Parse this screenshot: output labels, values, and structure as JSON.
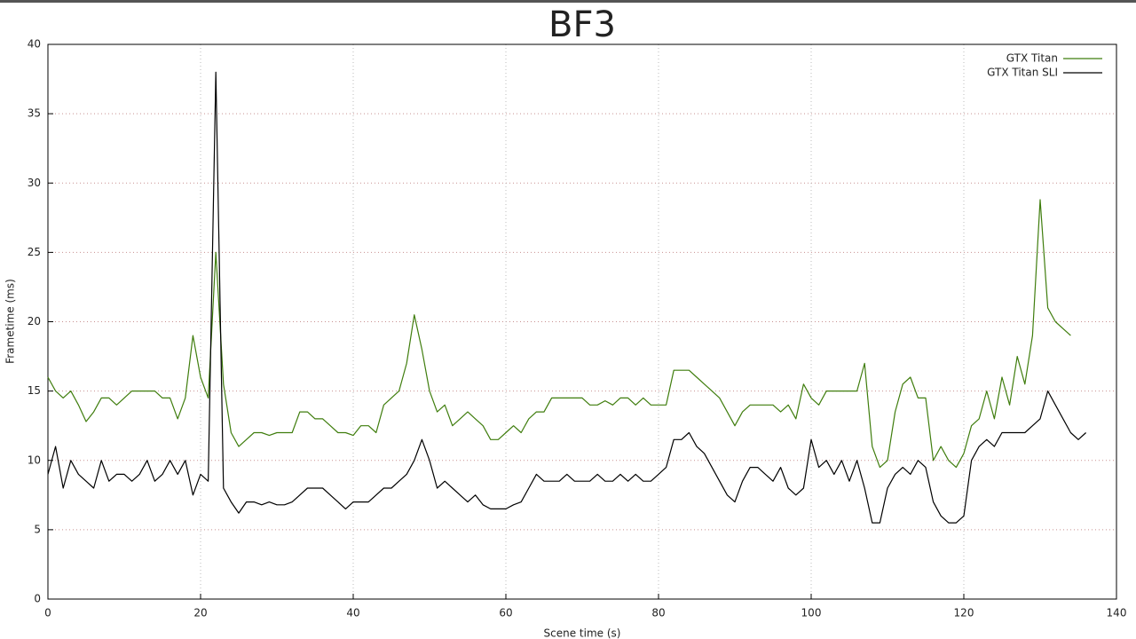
{
  "chart_data": {
    "type": "line",
    "title": "BF3",
    "x_label": "Scene time (s)",
    "y_label": "Frametime (ms)",
    "x": [
      0,
      1,
      2,
      3,
      4,
      5,
      6,
      7,
      8,
      9,
      10,
      11,
      12,
      13,
      14,
      15,
      16,
      17,
      18,
      19,
      20,
      21,
      22,
      23,
      24,
      25,
      26,
      27,
      28,
      29,
      30,
      31,
      32,
      33,
      34,
      35,
      36,
      37,
      38,
      39,
      40,
      41,
      42,
      43,
      44,
      45,
      46,
      47,
      48,
      49,
      50,
      51,
      52,
      53,
      54,
      55,
      56,
      57,
      58,
      59,
      60,
      61,
      62,
      63,
      64,
      65,
      66,
      67,
      68,
      69,
      70,
      71,
      72,
      73,
      74,
      75,
      76,
      77,
      78,
      79,
      80,
      81,
      82,
      83,
      84,
      85,
      86,
      87,
      88,
      89,
      90,
      91,
      92,
      93,
      94,
      95,
      96,
      97,
      98,
      99,
      100,
      101,
      102,
      103,
      104,
      105,
      106,
      107,
      108,
      109,
      110,
      111,
      112,
      113,
      114,
      115,
      116,
      117,
      118,
      119,
      120,
      121,
      122,
      123,
      124,
      125,
      126,
      127,
      128,
      129,
      130,
      131,
      132,
      133,
      134,
      135,
      136
    ],
    "series": [
      {
        "name": "GTX Titan",
        "color": "#3f7d0d",
        "values": [
          16,
          15,
          14.5,
          15,
          14,
          12.8,
          13.5,
          14.5,
          14.5,
          14,
          14.5,
          15,
          15,
          15,
          15,
          14.5,
          14.5,
          13,
          14.5,
          19,
          16,
          14.5,
          25,
          15.5,
          12,
          11,
          11.5,
          12,
          12,
          11.8,
          12,
          12,
          12,
          13.5,
          13.5,
          13,
          13,
          12.5,
          12,
          12,
          11.8,
          12.5,
          12.5,
          12,
          14,
          14.5,
          15,
          17,
          20.5,
          18,
          15,
          13.5,
          14,
          12.5,
          13,
          13.5,
          13,
          12.5,
          11.5,
          11.5,
          12,
          12.5,
          12,
          13,
          13.5,
          13.5,
          14.5,
          14.5,
          14.5,
          14.5,
          14.5,
          14,
          14,
          14.3,
          14,
          14.5,
          14.5,
          14,
          14.5,
          14,
          14,
          14,
          16.5,
          16.5,
          16.5,
          16,
          15.5,
          15,
          14.5,
          13.5,
          12.5,
          13.5,
          14,
          14,
          14,
          14,
          13.5,
          14,
          13,
          15.5,
          14.5,
          14,
          15,
          15,
          15,
          15,
          15,
          17,
          11,
          9.5,
          10,
          13.5,
          15.5,
          16,
          14.5,
          14.5,
          10,
          11,
          10,
          9.5,
          10.5,
          12.5,
          13,
          15,
          13,
          16,
          14,
          17.5,
          15.5,
          19,
          28.8,
          21,
          20,
          19.5,
          19,
          null,
          null
        ]
      },
      {
        "name": "GTX Titan SLI",
        "color": "#000000",
        "values": [
          9,
          11,
          8,
          10,
          9,
          8.5,
          8,
          10,
          8.5,
          9,
          9,
          8.5,
          9,
          10,
          8.5,
          9,
          10,
          9,
          10,
          7.5,
          9,
          8.5,
          38,
          8,
          7,
          6.2,
          7,
          7,
          6.8,
          7,
          6.8,
          6.8,
          7,
          7.5,
          8,
          8,
          8,
          7.5,
          7,
          6.5,
          7,
          7,
          7,
          7.5,
          8,
          8,
          8.5,
          9,
          10,
          11.5,
          10,
          8,
          8.5,
          8,
          7.5,
          7,
          7.5,
          6.8,
          6.5,
          6.5,
          6.5,
          6.8,
          7,
          8,
          9,
          8.5,
          8.5,
          8.5,
          9,
          8.5,
          8.5,
          8.5,
          9,
          8.5,
          8.5,
          9,
          8.5,
          9,
          8.5,
          8.5,
          9,
          9.5,
          11.5,
          11.5,
          12,
          11,
          10.5,
          9.5,
          8.5,
          7.5,
          7,
          8.5,
          9.5,
          9.5,
          9,
          8.5,
          9.5,
          8,
          7.5,
          8,
          11.5,
          9.5,
          10,
          9,
          10,
          8.5,
          10,
          8,
          5.5,
          5.5,
          8,
          9,
          9.5,
          9,
          10,
          9.5,
          7,
          6,
          5.5,
          5.5,
          6,
          10,
          11,
          11.5,
          11,
          12,
          12,
          12,
          12,
          12.5,
          13,
          15,
          14,
          13,
          12,
          11.5,
          12
        ]
      }
    ],
    "xlim": [
      0,
      140
    ],
    "xticks": [
      0,
      20,
      40,
      60,
      80,
      100,
      120,
      140
    ],
    "ylim": [
      0,
      40
    ],
    "yticks": [
      0,
      5,
      10,
      15,
      20,
      25,
      30,
      35,
      40
    ],
    "grid": true,
    "legend": "top-right"
  }
}
